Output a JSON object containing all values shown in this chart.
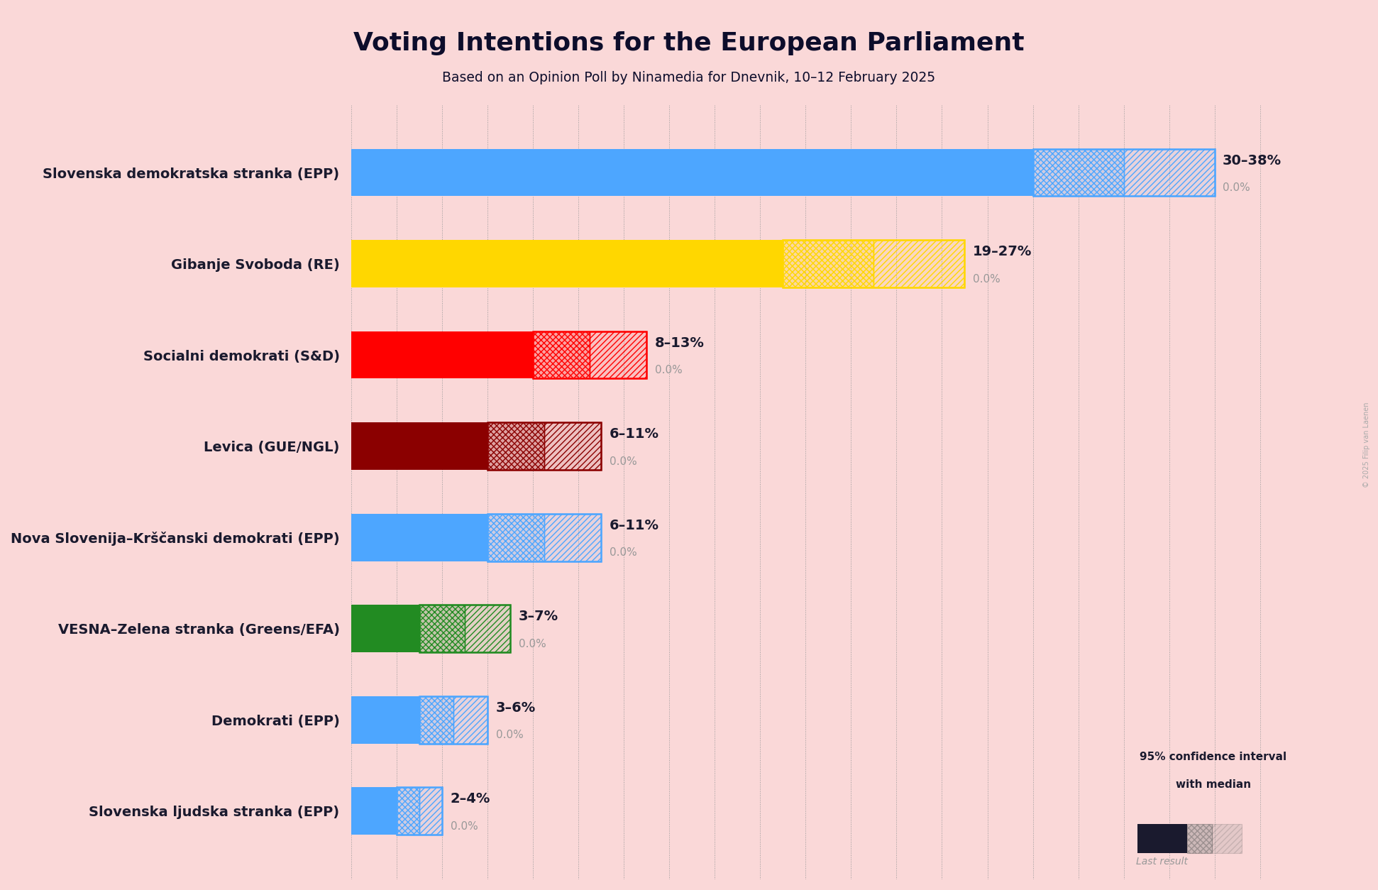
{
  "title": "Voting Intentions for the European Parliament",
  "subtitle": "Based on an Opinion Poll by Ninamedia for Dnevnik, 10–12 February 2025",
  "copyright": "© 2025 Filip van Laenen",
  "background_color": "#fad8d8",
  "parties": [
    "Slovenska demokratska stranka (EPP)",
    "Gibanje Svoboda (RE)",
    "Socialni demokrati (S&D)",
    "Levica (GUE/NGL)",
    "Nova Slovenija–Krščanski demokrati (EPP)",
    "VESNA–Zelena stranka (Greens/EFA)",
    "Demokrati (EPP)",
    "Slovenska ljudska stranka (EPP)"
  ],
  "ci_low": [
    30,
    19,
    8,
    6,
    6,
    3,
    3,
    2
  ],
  "ci_high": [
    38,
    27,
    13,
    11,
    11,
    7,
    6,
    4
  ],
  "medians": [
    34,
    23,
    10.5,
    8.5,
    8.5,
    5,
    4.5,
    3
  ],
  "last_results": [
    0.0,
    0.0,
    0.0,
    0.0,
    0.0,
    0.0,
    0.0,
    0.0
  ],
  "labels": [
    "30–38%",
    "19–27%",
    "8–13%",
    "6–11%",
    "6–11%",
    "3–7%",
    "3–6%",
    "2–4%"
  ],
  "colors": [
    "#4da6ff",
    "#FFD700",
    "#FF0000",
    "#8B0000",
    "#4da6ff",
    "#228B22",
    "#4da6ff",
    "#4da6ff"
  ],
  "xlim": [
    0,
    42
  ],
  "bar_height": 0.52,
  "figsize": [
    19.42,
    12.54
  ],
  "dpi": 100
}
